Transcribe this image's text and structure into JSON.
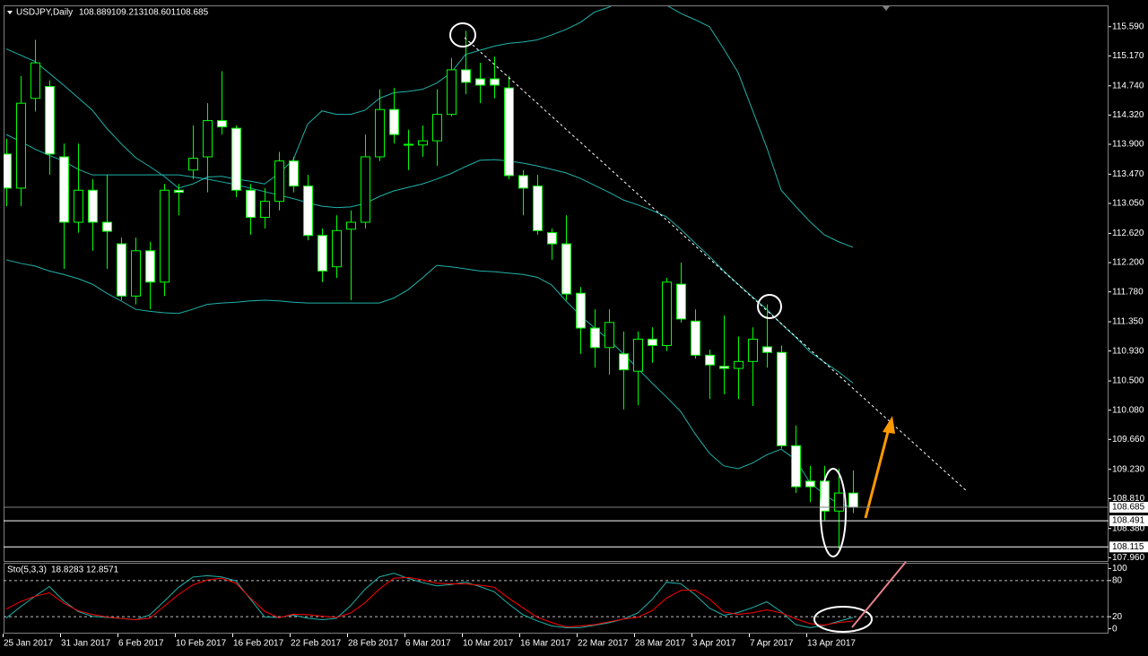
{
  "chart_data": [
    {
      "type": "candlestick",
      "title": "USDJPY,Daily",
      "categories": [
        "25 Jan 2017",
        null,
        null,
        null,
        "31 Jan 2017",
        null,
        null,
        null,
        "6 Feb 2017",
        null,
        null,
        null,
        "10 Feb 2017",
        null,
        null,
        null,
        "16 Feb 2017",
        null,
        null,
        null,
        "22 Feb 2017",
        null,
        null,
        null,
        "28 Feb 2017",
        null,
        null,
        null,
        "6 Mar 2017",
        null,
        null,
        null,
        "10 Mar 2017",
        null,
        null,
        null,
        "16 Mar 2017",
        null,
        null,
        null,
        "22 Mar 2017",
        null,
        null,
        null,
        "28 Mar 2017",
        null,
        null,
        null,
        "3 Apr 2017",
        null,
        null,
        null,
        "7 Apr 2017",
        null,
        null,
        null,
        "13 Apr 2017",
        null,
        null,
        null
      ],
      "open": [
        113.76,
        113.27,
        114.56,
        114.73,
        113.72,
        112.78,
        113.24,
        112.78,
        112.47,
        111.72,
        112.37,
        111.92,
        113.24,
        113.53,
        113.72,
        114.24,
        114.13,
        113.24,
        112.85,
        113.08,
        113.66,
        113.3,
        112.59,
        112.14,
        112.68,
        112.78,
        113.72,
        114.4,
        113.9,
        113.89,
        113.95,
        114.33,
        114.97,
        114.84,
        114.84,
        114.71,
        113.45,
        113.3,
        112.63,
        112.47,
        111.76,
        111.26,
        110.98,
        110.89,
        110.64,
        111.1,
        111.01,
        111.89,
        111.36,
        110.87,
        110.71,
        110.68,
        110.78,
        110.99,
        110.91,
        109.57,
        109.06,
        109.06,
        108.63,
        108.889
      ],
      "high": [
        113.98,
        114.88,
        115.4,
        114.82,
        113.91,
        113.91,
        113.4,
        113.46,
        112.56,
        112.56,
        112.5,
        113.33,
        113.33,
        114.17,
        114.49,
        114.95,
        114.17,
        113.33,
        113.27,
        113.79,
        113.72,
        113.46,
        112.69,
        112.88,
        112.95,
        114.04,
        114.69,
        114.71,
        114.11,
        114.17,
        114.69,
        115.14,
        115.53,
        115.07,
        115.16,
        114.88,
        113.53,
        113.46,
        112.69,
        112.88,
        111.85,
        111.53,
        111.53,
        111.21,
        111.21,
        111.27,
        111.98,
        112.2,
        111.53,
        110.95,
        111.44,
        111.14,
        111.27,
        111.6,
        111.01,
        109.86,
        109.28,
        109.28,
        109.24,
        109.213
      ],
      "low": [
        113.01,
        113.01,
        114.37,
        113.46,
        112.11,
        112.63,
        112.37,
        112.11,
        111.66,
        111.6,
        111.53,
        111.72,
        112.88,
        113.4,
        113.21,
        114.04,
        113.14,
        112.6,
        112.69,
        112.95,
        113.21,
        112.52,
        111.92,
        111.98,
        111.66,
        112.69,
        113.66,
        113.91,
        113.53,
        113.72,
        113.59,
        114.3,
        114.62,
        114.49,
        114.56,
        113.4,
        112.88,
        112.6,
        112.24,
        111.66,
        110.89,
        110.69,
        110.59,
        110.09,
        110.15,
        110.76,
        110.93,
        111.34,
        110.82,
        110.24,
        110.31,
        110.24,
        110.14,
        110.69,
        109.53,
        108.89,
        108.76,
        108.5,
        108.09,
        108.601
      ],
      "close": [
        113.27,
        114.49,
        115.07,
        113.76,
        112.78,
        113.24,
        112.78,
        112.65,
        111.72,
        112.37,
        111.92,
        113.24,
        113.21,
        113.7,
        114.24,
        114.15,
        113.24,
        112.85,
        113.08,
        113.66,
        113.3,
        112.59,
        112.08,
        112.66,
        112.78,
        113.72,
        114.4,
        114.04,
        113.89,
        113.95,
        114.33,
        114.97,
        114.79,
        114.75,
        114.75,
        113.45,
        113.27,
        112.66,
        112.47,
        111.75,
        111.26,
        110.98,
        111.34,
        110.66,
        111.1,
        111.01,
        111.92,
        111.39,
        110.87,
        110.73,
        110.68,
        110.78,
        111.1,
        110.91,
        109.57,
        108.98,
        108.98,
        108.63,
        108.89,
        108.685
      ],
      "up_color": "#000000",
      "down_color": "#ffffff",
      "wick_color": "#00ff00",
      "bands": [
        {
          "color": "#20b2aa",
          "values": [
            115.27,
            115.18,
            115.09,
            114.92,
            114.75,
            114.57,
            114.39,
            114.13,
            113.91,
            113.71,
            113.58,
            113.44,
            113.27,
            113.33,
            113.43,
            113.44,
            113.4,
            113.37,
            113.33,
            113.48,
            113.68,
            114.19,
            114.38,
            114.33,
            114.33,
            114.39,
            114.56,
            114.64,
            114.66,
            114.69,
            114.78,
            114.93,
            115.19,
            115.25,
            115.31,
            115.35,
            115.37,
            115.4,
            115.47,
            115.55,
            115.65,
            115.8,
            115.87,
            116.0,
            116.04,
            116.0,
            115.9,
            115.78,
            115.69,
            115.59,
            115.27,
            114.93,
            114.39,
            113.85,
            113.24,
            113.01,
            112.79,
            112.6,
            112.5,
            112.42
          ]
        },
        {
          "color": "#20b2aa",
          "values": [
            114.04,
            113.94,
            113.83,
            113.74,
            113.66,
            113.54,
            113.46,
            113.46,
            113.46,
            113.46,
            113.46,
            113.46,
            113.46,
            113.43,
            113.4,
            113.36,
            113.32,
            113.27,
            113.22,
            113.17,
            113.12,
            113.06,
            113.01,
            112.99,
            113.0,
            113.05,
            113.15,
            113.23,
            113.28,
            113.33,
            113.4,
            113.48,
            113.58,
            113.67,
            113.68,
            113.66,
            113.63,
            113.59,
            113.54,
            113.49,
            113.41,
            113.31,
            113.21,
            113.1,
            113.03,
            112.95,
            112.86,
            112.68,
            112.48,
            112.29,
            112.08,
            111.89,
            111.71,
            111.53,
            111.32,
            111.13,
            110.92,
            110.77,
            110.63,
            110.47
          ]
        },
        {
          "color": "#20b2aa",
          "values": [
            112.24,
            112.19,
            112.15,
            112.08,
            112.03,
            111.97,
            111.89,
            111.76,
            111.65,
            111.53,
            111.5,
            111.48,
            111.47,
            111.53,
            111.6,
            111.62,
            111.63,
            111.65,
            111.66,
            111.65,
            111.63,
            111.62,
            111.62,
            111.62,
            111.62,
            111.62,
            111.62,
            111.69,
            111.81,
            111.98,
            112.16,
            112.14,
            112.11,
            112.08,
            112.07,
            112.05,
            112.03,
            111.99,
            111.88,
            111.65,
            111.44,
            111.26,
            111.09,
            110.89,
            110.68,
            110.47,
            110.27,
            110.06,
            109.74,
            109.46,
            109.28,
            109.24,
            109.32,
            109.44,
            109.52,
            109.37,
            109.04,
            108.87,
            108.73,
            108.69
          ]
        }
      ],
      "hlines": [
        108.491,
        108.115
      ],
      "ylim": [
        107.9,
        115.87
      ],
      "yticks": [
        {
          "value": 115.59,
          "label": "115.590"
        },
        {
          "value": 115.17,
          "label": "115.170"
        },
        {
          "value": 114.74,
          "label": "114.740"
        },
        {
          "value": 114.32,
          "label": "114.320"
        },
        {
          "value": 113.9,
          "label": "113.900"
        },
        {
          "value": 113.47,
          "label": "113.470"
        },
        {
          "value": 113.05,
          "label": "113.050"
        },
        {
          "value": 112.62,
          "label": "112.620"
        },
        {
          "value": 112.2,
          "label": "112.200"
        },
        {
          "value": 111.78,
          "label": "111.780"
        },
        {
          "value": 111.35,
          "label": "111.350"
        },
        {
          "value": 110.93,
          "label": "110.930"
        },
        {
          "value": 110.5,
          "label": "110.500"
        },
        {
          "value": 110.08,
          "label": "110.080"
        },
        {
          "value": 109.66,
          "label": "109.660"
        },
        {
          "value": 109.23,
          "label": "109.230"
        },
        {
          "value": 108.81,
          "label": "108.810"
        },
        {
          "value": 108.38,
          "label": "108.380"
        },
        {
          "value": 107.96,
          "label": "107.960"
        }
      ]
    },
    {
      "type": "line",
      "title": "Sto(5,3,3)",
      "series": [
        {
          "color": "#20b2aa",
          "values": [
            17.9,
            36.6,
            53.9,
            70.1,
            46.3,
            28.7,
            20.6,
            19.0,
            17.2,
            14.8,
            23.1,
            45.5,
            68.7,
            85.8,
            88.1,
            86.1,
            79.4,
            49.6,
            19.7,
            18.7,
            22.7,
            17.5,
            15.1,
            17.2,
            38.4,
            65.7,
            86.1,
            92.1,
            83.6,
            76.7,
            71.2,
            73.4,
            77.3,
            70.1,
            61.5,
            41.5,
            23.4,
            13.1,
            4.9,
            1.8,
            1.8,
            6.0,
            10.1,
            16.0,
            26.1,
            48.5,
            77.2,
            74.8,
            56.7,
            34.3,
            22.4,
            26.9,
            35.2,
            44.8,
            28.5,
            7.0,
            1.9,
            5.5,
            12.5,
            18.8283
          ]
        },
        {
          "color": "#ff0000",
          "values": [
            32.8,
            45.2,
            54.0,
            59.7,
            42.5,
            30.0,
            23.7,
            19.6,
            17.2,
            15.1,
            17.5,
            37.3,
            56.7,
            72.7,
            80.9,
            84.0,
            75.7,
            51.2,
            29.1,
            18.2,
            24.2,
            23.4,
            21.0,
            18.7,
            26.1,
            43.3,
            66.0,
            83.9,
            85.1,
            81.2,
            75.7,
            74.6,
            74.6,
            72.4,
            69.0,
            51.0,
            34.8,
            19.0,
            10.4,
            3.1,
            4.6,
            6.9,
            11.6,
            16.0,
            19.1,
            30.0,
            50.6,
            63.7,
            64.2,
            49.4,
            27.9,
            23.9,
            26.6,
            31.3,
            26.3,
            16.7,
            8.5,
            6.1,
            10.4,
            12.8571
          ]
        }
      ],
      "levels": [
        20,
        80
      ],
      "ylim": [
        -8,
        108
      ],
      "yticks": [
        0,
        20,
        80,
        100
      ]
    }
  ]
}
